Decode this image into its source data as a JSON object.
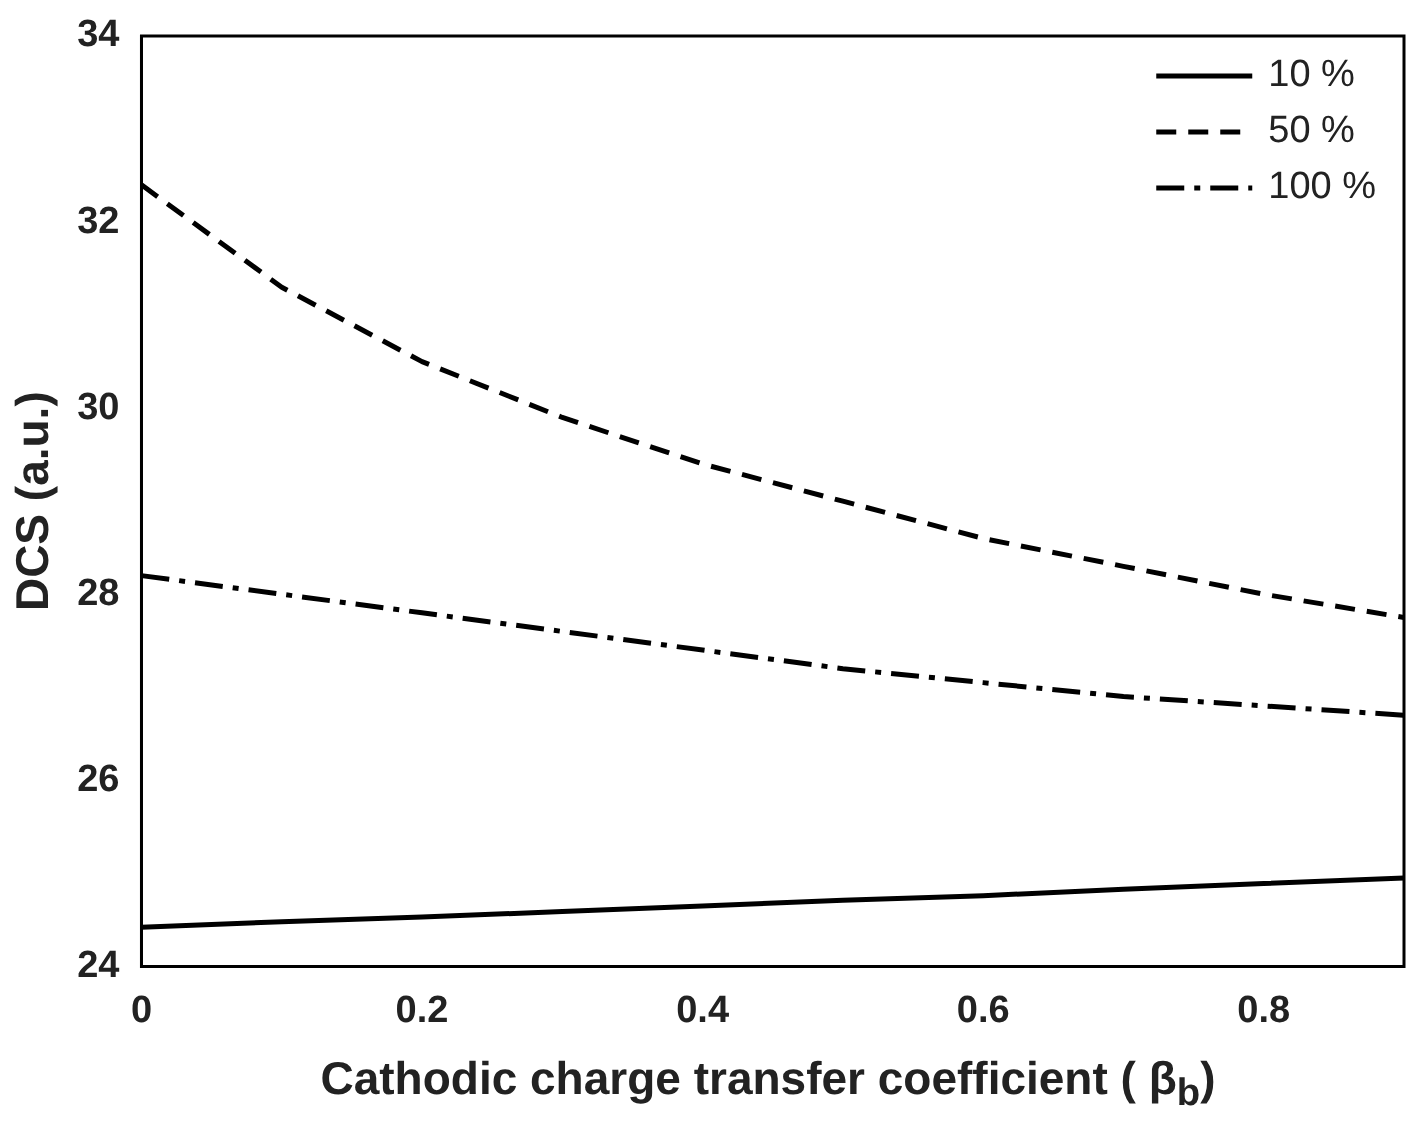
{
  "chart_data": {
    "type": "line",
    "xlabel": "Cathodic charge transfer coefficient ( β$_{b}$)",
    "ylabel": "DCS (a.u.)",
    "x": [
      0,
      0.1,
      0.2,
      0.3,
      0.4,
      0.5,
      0.6,
      0.7,
      0.8,
      0.9
    ],
    "series": [
      {
        "name": "10 %",
        "color": "#000000",
        "line_style": "solid",
        "values": [
          24.42,
          24.48,
          24.53,
          24.59,
          24.65,
          24.71,
          24.76,
          24.83,
          24.89,
          24.95
        ]
      },
      {
        "name": "50 %",
        "color": "#000000",
        "line_style": "dashed",
        "values": [
          32.4,
          31.3,
          30.5,
          29.9,
          29.4,
          29.0,
          28.6,
          28.3,
          28.0,
          27.75
        ]
      },
      {
        "name": "100 %",
        "color": "#000000",
        "line_style": "dashdot",
        "values": [
          28.2,
          28.0,
          27.8,
          27.6,
          27.4,
          27.2,
          27.05,
          26.9,
          26.8,
          26.7
        ]
      }
    ],
    "xlim": [
      0,
      0.9
    ],
    "xticks": [
      0,
      0.2,
      0.4,
      0.6,
      0.8
    ],
    "ylim": [
      24,
      34
    ],
    "yticks": [
      24,
      26,
      28,
      30,
      32,
      34
    ],
    "grid": false,
    "legend": "top right",
    "marker": "none"
  }
}
